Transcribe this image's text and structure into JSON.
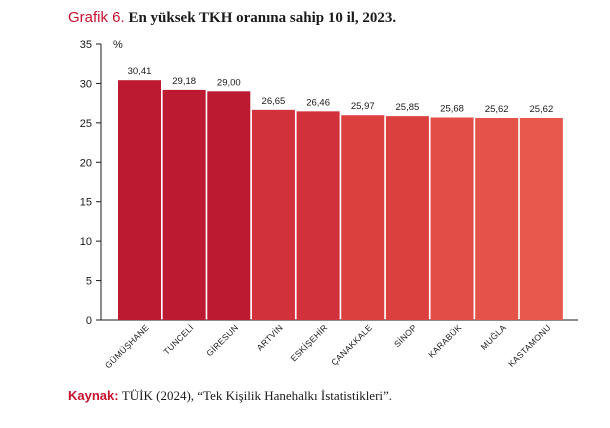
{
  "header": {
    "prefix": "Grafik 6.",
    "title": "En yüksek TKH oranına sahip 10 il, 2023."
  },
  "footer": {
    "source_label": "Kaynak:",
    "source_text": "TÜİK (2024), “Tek Kişilik Hanehalkı İstatistikleri”."
  },
  "chart_data": {
    "type": "bar",
    "title": "En yüksek TKH oranına sahip 10 il, 2023.",
    "ylabel": "%",
    "xlabel": "",
    "ylim": [
      0,
      35
    ],
    "yticks": [
      0,
      5,
      10,
      15,
      20,
      25,
      30,
      35
    ],
    "categories": [
      "GÜMÜŞHANE",
      "TUNCELİ",
      "GİRESUN",
      "ARTVİN",
      "ESKİŞEHİR",
      "ÇANAKKALE",
      "SİNOP",
      "KARABÜK",
      "MUĞLA",
      "KASTAMONU"
    ],
    "values": [
      30.41,
      29.18,
      29.0,
      26.65,
      26.46,
      25.97,
      25.85,
      25.68,
      25.62,
      25.62
    ],
    "value_labels": [
      "30,41",
      "29,18",
      "29,00",
      "26,65",
      "26,46",
      "25,97",
      "25,85",
      "25,68",
      "25,62",
      "25,62"
    ],
    "colors": [
      "#bc1a30",
      "#bc1a30",
      "#bc1a30",
      "#d0313b",
      "#d0313b",
      "#db403f",
      "#db403f",
      "#e24d47",
      "#e4524a",
      "#e8584c"
    ],
    "grid": false,
    "legend": "none"
  }
}
